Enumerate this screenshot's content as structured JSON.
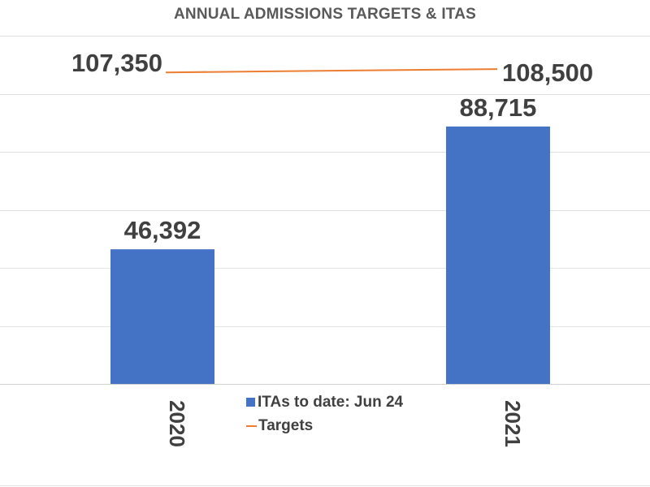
{
  "chart_data": {
    "type": "bar",
    "title": "ANNUAL ADMISSIONS TARGETS & ITAS",
    "categories": [
      "2020",
      "2021"
    ],
    "series": [
      {
        "name": "ITAs to date: Jun 24",
        "type": "bar",
        "values": [
          46392,
          88715
        ],
        "value_labels": [
          "46,392",
          "88,715"
        ],
        "color": "#4472c4"
      },
      {
        "name": "Targets",
        "type": "line",
        "values": [
          107350,
          108500
        ],
        "value_labels": [
          "107,350",
          "108,500"
        ],
        "color": "#ed7d31"
      }
    ],
    "xlabel": "",
    "ylabel": "",
    "ylim": [
      0,
      120000
    ],
    "grid": true,
    "legend_position": "bottom-center"
  }
}
